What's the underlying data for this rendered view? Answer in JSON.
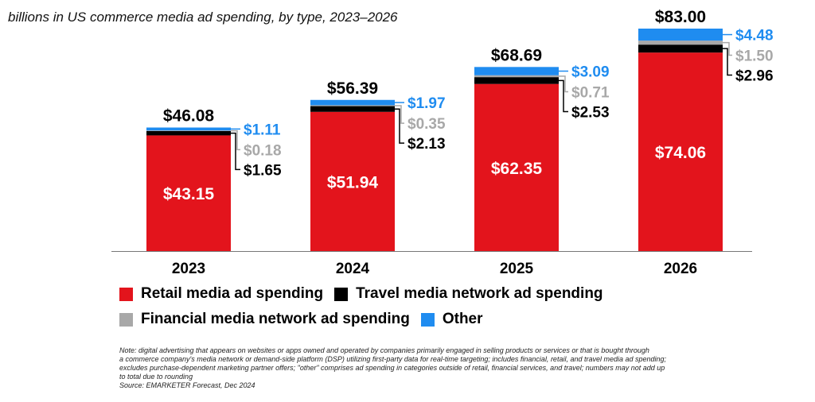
{
  "chart_data": {
    "type": "bar",
    "stacked": true,
    "subtitle": "billions in US commerce media ad spending, by type, 2023–2026",
    "categories": [
      "2023",
      "2024",
      "2025",
      "2026"
    ],
    "totals": [
      46.08,
      56.39,
      68.69,
      83.0
    ],
    "total_labels": [
      "$46.08",
      "$56.39",
      "$68.69",
      "$83.00"
    ],
    "series": [
      {
        "name": "Retail media ad spending",
        "color": "#e3141c",
        "values": [
          43.15,
          51.94,
          62.35,
          74.06
        ],
        "labels": [
          "$43.15",
          "$51.94",
          "$62.35",
          "$74.06"
        ]
      },
      {
        "name": "Travel media network ad spending",
        "color": "#000000",
        "values": [
          1.65,
          2.13,
          2.53,
          2.96
        ],
        "labels": [
          "$1.65",
          "$2.13",
          "$2.53",
          "$2.96"
        ]
      },
      {
        "name": "Financial media network ad spending",
        "color": "#a8a8a8",
        "values": [
          0.18,
          0.35,
          0.71,
          1.5
        ],
        "labels": [
          "$0.18",
          "$0.35",
          "$0.71",
          "$1.50"
        ]
      },
      {
        "name": "Other",
        "color": "#1f8cf0",
        "values": [
          1.11,
          1.97,
          3.09,
          4.48
        ],
        "labels": [
          "$1.11",
          "$1.97",
          "$3.09",
          "$4.48"
        ]
      }
    ],
    "ylim": [
      0,
      83
    ],
    "legend": {
      "placement": "bottom",
      "rows": [
        [
          "Retail media ad spending",
          "Travel media network ad spending"
        ],
        [
          "Financial media network ad spending",
          "Other"
        ]
      ]
    },
    "colors": {
      "retail": "#e3141c",
      "travel": "#000000",
      "financial": "#a8a8a8",
      "other": "#1f8cf0"
    }
  },
  "note_lines": [
    "Note: digital advertising that appears on websites or apps owned and operated by companies primarily engaged in selling products or services or that is bought through",
    "a commerce company's media network or demand-side platform (DSP) utilizing first-party data for real-time targeting; includes financial, retail, and travel media ad spending;",
    "excludes purchase-dependent marketing partner offers; \"other\" comprises ad spending in categories outside of retail, financial services, and travel; numbers may not add up",
    "to total due to rounding"
  ],
  "source": "Source: EMARKETER Forecast, Dec 2024"
}
